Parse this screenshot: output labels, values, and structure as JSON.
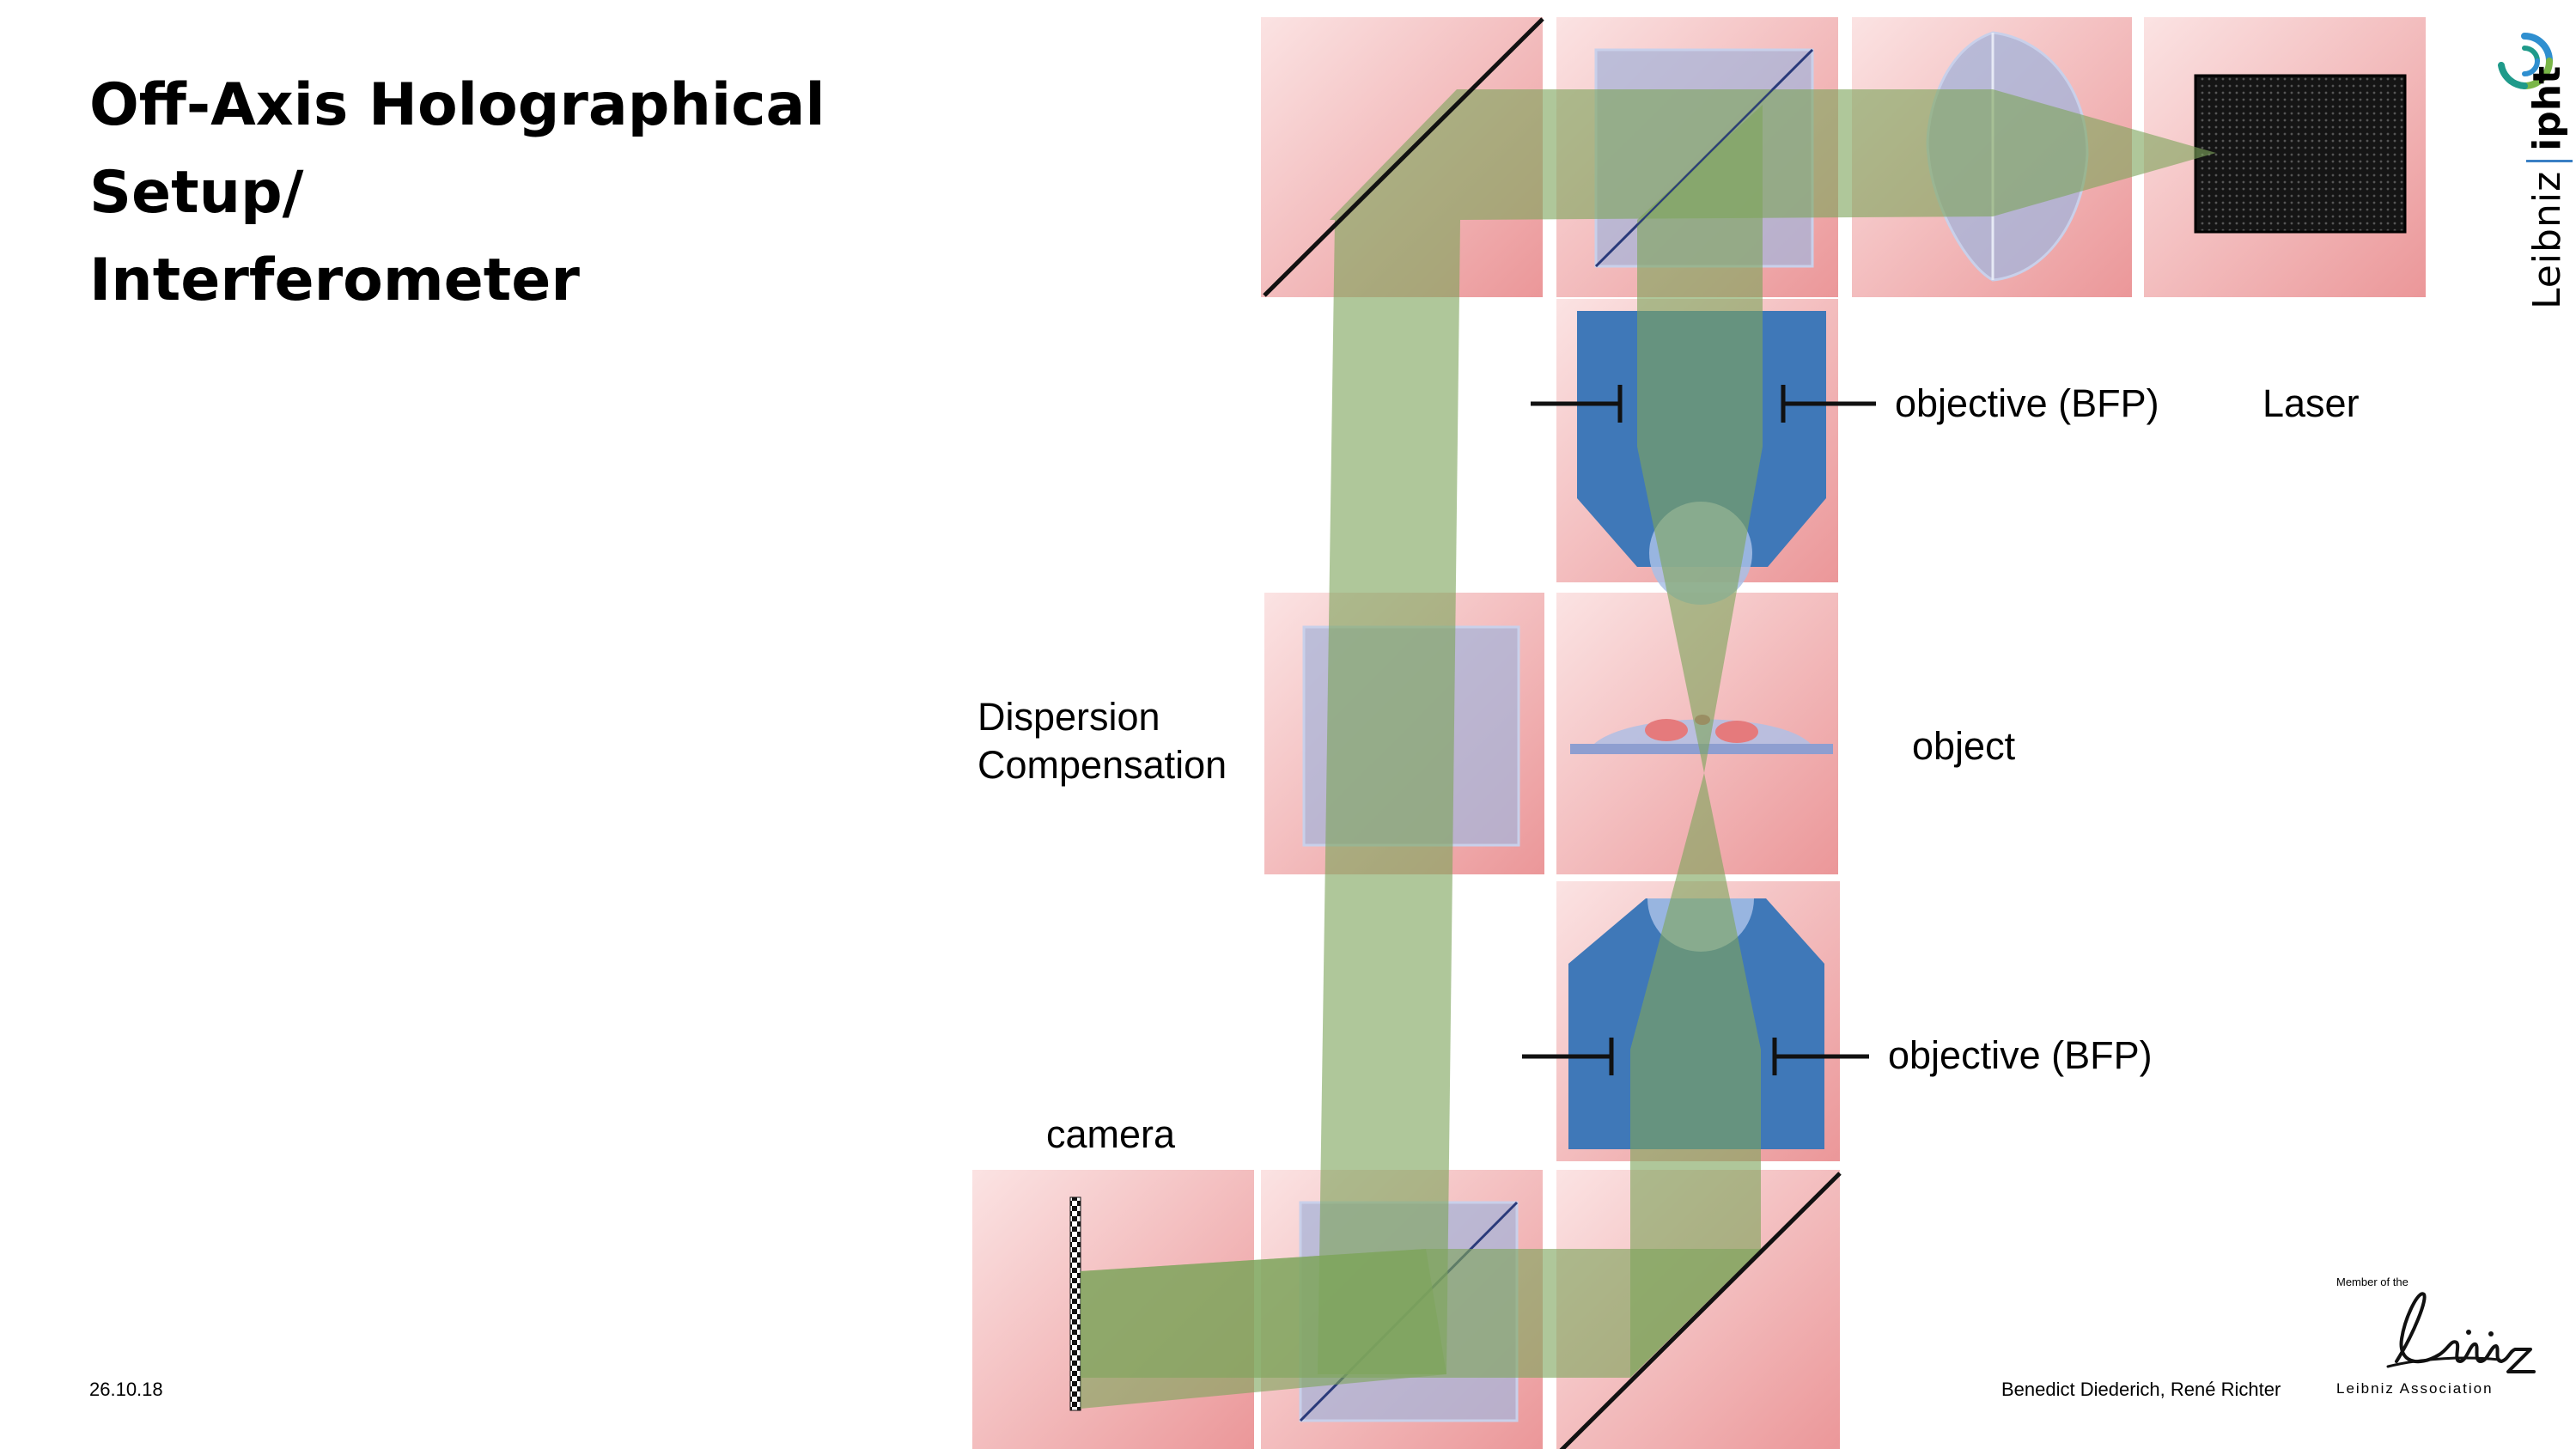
{
  "title": {
    "line1": "Off-Axis Holographical Setup/",
    "line2": "Interferometer"
  },
  "labels": {
    "laser": "Laser",
    "objective_top": "objective (BFP)",
    "objective_bottom": "objective (BFP)",
    "object": "object",
    "dispersion_line1": "Dispersion",
    "dispersion_line2": "Compensation",
    "camera": "camera"
  },
  "footer": {
    "date": "26.10.18",
    "authors": "Benedict Diederich, René Richter"
  },
  "logos": {
    "ipht_word1": "Leibniz",
    "ipht_word2": "ipht",
    "leibniz_member": "Member of the",
    "leibniz_association": "Leibniz Association"
  },
  "colors": {
    "tile_light": "#f8dcdc",
    "tile_dark": "#ec9a9c",
    "beam": "#8caf6c",
    "beam_dark": "#6b8a3a",
    "optic_glass": "#a8b4d8",
    "objective_blue": "#3f78b8",
    "mirror": "#111111"
  }
}
